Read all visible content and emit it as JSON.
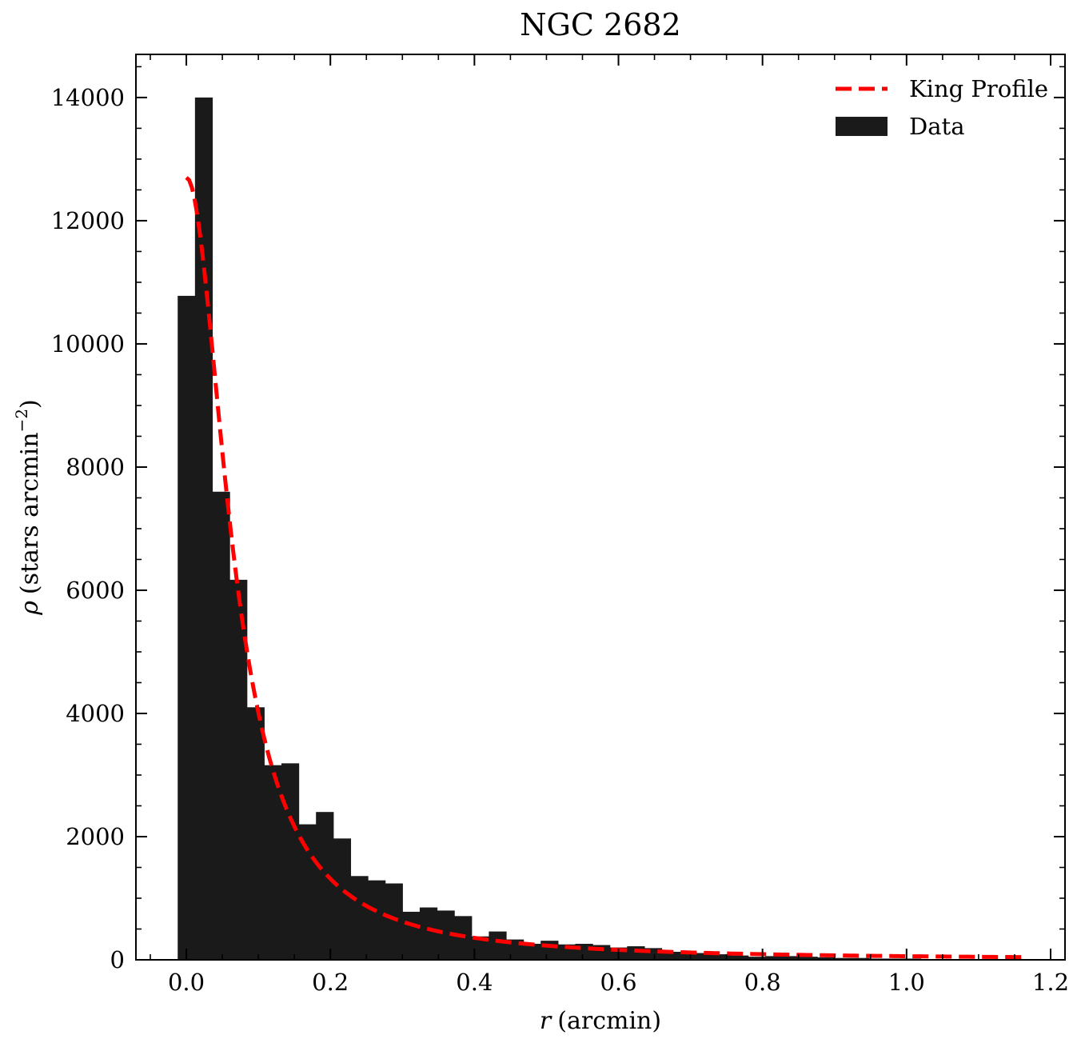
{
  "chart_data": {
    "type": "bar",
    "title": "NGC 2682",
    "xlabel": "(arcmin)",
    "xlabel_symbol": "r",
    "ylabel": "(stars arcmin",
    "ylabel_symbol": "ρ",
    "ylabel_exponent": "−2",
    "ylabel_close": ")",
    "xlim": [
      -0.07,
      1.22
    ],
    "ylim": [
      0,
      14700
    ],
    "xticks": [
      0.0,
      0.2,
      0.4,
      0.6,
      0.8,
      1.0,
      1.2
    ],
    "xtick_labels": [
      "0.0",
      "0.2",
      "0.4",
      "0.6",
      "0.8",
      "1.0",
      "1.2"
    ],
    "yticks": [
      0,
      2000,
      4000,
      6000,
      8000,
      10000,
      12000,
      14000
    ],
    "ytick_labels": [
      "0",
      "2000",
      "4000",
      "6000",
      "8000",
      "10000",
      "12000",
      "14000"
    ],
    "grid": false,
    "legend_position": "top-right",
    "bins": {
      "start": -0.012,
      "width": 0.024,
      "values": [
        10780,
        14000,
        7600,
        6170,
        4100,
        3160,
        3190,
        2200,
        2400,
        1970,
        1360,
        1290,
        1240,
        780,
        850,
        800,
        710,
        380,
        460,
        330,
        260,
        310,
        250,
        260,
        240,
        200,
        220,
        190,
        130,
        130,
        110,
        90,
        70,
        50,
        60,
        60,
        50,
        40,
        30,
        30,
        20,
        20,
        20,
        10,
        10,
        10,
        10,
        10,
        10
      ]
    },
    "series": [
      {
        "name": "King Profile",
        "kind": "line",
        "style": "dashed",
        "color": "#ff0000",
        "model": "king",
        "params": {
          "k": 12700,
          "rc": 0.068,
          "bg": 0
        },
        "x_range": [
          0.0,
          1.16
        ]
      },
      {
        "name": "Data",
        "kind": "histogram",
        "color": "#1a1a1a"
      }
    ]
  }
}
